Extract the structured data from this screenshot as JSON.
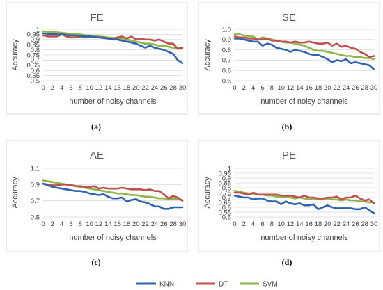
{
  "legend": [
    {
      "name": "KNN",
      "color": "#2E64AF"
    },
    {
      "name": "DT",
      "color": "#C0504D"
    },
    {
      "name": "SVM",
      "color": "#8DB54A"
    }
  ],
  "chart_data": [
    {
      "type": "line",
      "label": "(a)",
      "title": "FE",
      "xlabel": "number of noisy channels",
      "ylabel": "Accuracy",
      "x": [
        0,
        1,
        2,
        3,
        4,
        5,
        6,
        7,
        8,
        9,
        10,
        11,
        12,
        13,
        14,
        15,
        16,
        17,
        18,
        19,
        20,
        21,
        22,
        23,
        24,
        25,
        26,
        27,
        28,
        29,
        30
      ],
      "x_ticks": [
        0,
        2,
        4,
        6,
        8,
        10,
        12,
        14,
        16,
        18,
        20,
        22,
        24,
        26,
        28,
        30
      ],
      "y_ticks": [
        "0.5",
        "0.55",
        "0.6",
        "0.65",
        "0.7",
        "0.75",
        "0.8",
        "0.85",
        "0.9",
        "0.95",
        "1"
      ],
      "ylim": [
        0.5,
        1.0
      ],
      "grid": true,
      "series": [
        {
          "name": "KNN",
          "color": "#2E64AF",
          "values": [
            0.96,
            0.955,
            0.955,
            0.95,
            0.95,
            0.945,
            0.94,
            0.94,
            0.935,
            0.93,
            0.93,
            0.925,
            0.92,
            0.915,
            0.91,
            0.9,
            0.9,
            0.89,
            0.88,
            0.87,
            0.86,
            0.84,
            0.82,
            0.84,
            0.82,
            0.81,
            0.8,
            0.78,
            0.76,
            0.7,
            0.67
          ]
        },
        {
          "name": "DT",
          "color": "#C0504D",
          "values": [
            0.94,
            0.93,
            0.93,
            0.93,
            0.95,
            0.93,
            0.92,
            0.92,
            0.93,
            0.92,
            0.93,
            0.92,
            0.92,
            0.92,
            0.91,
            0.91,
            0.92,
            0.93,
            0.91,
            0.93,
            0.9,
            0.91,
            0.9,
            0.9,
            0.89,
            0.9,
            0.88,
            0.86,
            0.86,
            0.81,
            0.82
          ]
        },
        {
          "name": "SVM",
          "color": "#8DB54A",
          "values": [
            0.98,
            0.975,
            0.975,
            0.97,
            0.965,
            0.96,
            0.955,
            0.955,
            0.95,
            0.94,
            0.94,
            0.935,
            0.93,
            0.925,
            0.92,
            0.915,
            0.91,
            0.91,
            0.9,
            0.89,
            0.88,
            0.87,
            0.86,
            0.86,
            0.85,
            0.84,
            0.84,
            0.83,
            0.82,
            0.82,
            0.81
          ]
        }
      ]
    },
    {
      "type": "line",
      "label": "(b)",
      "title": "SE",
      "xlabel": "number of noisy channels",
      "ylabel": "Accuracy",
      "x": [
        0,
        1,
        2,
        3,
        4,
        5,
        6,
        7,
        8,
        9,
        10,
        11,
        12,
        13,
        14,
        15,
        16,
        17,
        18,
        19,
        20,
        21,
        22,
        23,
        24,
        25,
        26,
        27,
        28,
        29,
        30
      ],
      "x_ticks": [
        0,
        2,
        4,
        6,
        8,
        10,
        12,
        14,
        16,
        18,
        20,
        22,
        24,
        26,
        28,
        30
      ],
      "y_ticks": [
        "0.5",
        "0.6",
        "0.7",
        "0.8",
        "0.9",
        "1.0"
      ],
      "ylim": [
        0.5,
        1.0
      ],
      "grid": true,
      "series": [
        {
          "name": "KNN",
          "color": "#2E64AF",
          "values": [
            0.91,
            0.91,
            0.9,
            0.89,
            0.88,
            0.88,
            0.84,
            0.86,
            0.85,
            0.82,
            0.81,
            0.8,
            0.78,
            0.8,
            0.79,
            0.78,
            0.76,
            0.75,
            0.75,
            0.73,
            0.71,
            0.68,
            0.7,
            0.69,
            0.71,
            0.67,
            0.68,
            0.67,
            0.66,
            0.65,
            0.61
          ]
        },
        {
          "name": "DT",
          "color": "#C0504D",
          "values": [
            0.93,
            0.92,
            0.92,
            0.91,
            0.91,
            0.9,
            0.9,
            0.91,
            0.89,
            0.89,
            0.88,
            0.88,
            0.87,
            0.88,
            0.87,
            0.87,
            0.88,
            0.87,
            0.86,
            0.86,
            0.87,
            0.84,
            0.86,
            0.83,
            0.84,
            0.82,
            0.81,
            0.78,
            0.76,
            0.73,
            0.74
          ]
        },
        {
          "name": "SVM",
          "color": "#8DB54A",
          "values": [
            0.95,
            0.95,
            0.94,
            0.93,
            0.93,
            0.9,
            0.92,
            0.91,
            0.9,
            0.89,
            0.88,
            0.87,
            0.87,
            0.86,
            0.85,
            0.84,
            0.82,
            0.8,
            0.79,
            0.79,
            0.78,
            0.77,
            0.76,
            0.75,
            0.74,
            0.74,
            0.73,
            0.73,
            0.72,
            0.72,
            0.71
          ]
        }
      ]
    },
    {
      "type": "line",
      "label": "(c)",
      "title": "AE",
      "xlabel": "number of noisy channels",
      "ylabel": "Accuracy",
      "x": [
        0,
        1,
        2,
        3,
        4,
        5,
        6,
        7,
        8,
        9,
        10,
        11,
        12,
        13,
        14,
        15,
        16,
        17,
        18,
        19,
        20,
        21,
        22,
        23,
        24,
        25,
        26,
        27,
        28,
        29,
        30
      ],
      "x_ticks": [
        0,
        2,
        4,
        6,
        8,
        10,
        12,
        14,
        16,
        18,
        20,
        22,
        24,
        26,
        28,
        30
      ],
      "y_ticks": [
        "0.5",
        "0.7",
        "0.9",
        "1.1"
      ],
      "ylim": [
        0.5,
        1.1
      ],
      "grid": true,
      "series": [
        {
          "name": "KNN",
          "color": "#2E64AF",
          "values": [
            0.91,
            0.89,
            0.87,
            0.86,
            0.85,
            0.84,
            0.83,
            0.82,
            0.82,
            0.81,
            0.79,
            0.78,
            0.77,
            0.78,
            0.75,
            0.73,
            0.73,
            0.74,
            0.69,
            0.71,
            0.72,
            0.69,
            0.68,
            0.66,
            0.63,
            0.63,
            0.6,
            0.6,
            0.62,
            0.62,
            0.62
          ]
        },
        {
          "name": "DT",
          "color": "#C0504D",
          "values": [
            0.91,
            0.9,
            0.89,
            0.89,
            0.9,
            0.9,
            0.89,
            0.88,
            0.88,
            0.87,
            0.87,
            0.88,
            0.85,
            0.86,
            0.85,
            0.85,
            0.85,
            0.86,
            0.85,
            0.84,
            0.84,
            0.84,
            0.83,
            0.84,
            0.82,
            0.82,
            0.78,
            0.73,
            0.76,
            0.74,
            0.7
          ]
        },
        {
          "name": "SVM",
          "color": "#8DB54A",
          "values": [
            0.95,
            0.94,
            0.93,
            0.92,
            0.91,
            0.9,
            0.9,
            0.88,
            0.87,
            0.86,
            0.85,
            0.84,
            0.83,
            0.82,
            0.81,
            0.8,
            0.79,
            0.79,
            0.78,
            0.77,
            0.77,
            0.76,
            0.75,
            0.75,
            0.74,
            0.73,
            0.73,
            0.72,
            0.72,
            0.72,
            0.71
          ]
        }
      ]
    },
    {
      "type": "line",
      "label": "(d)",
      "title": "PE",
      "xlabel": "number of noisy channels",
      "ylabel": "Accuracy",
      "x": [
        0,
        1,
        2,
        3,
        4,
        5,
        6,
        7,
        8,
        9,
        10,
        11,
        12,
        13,
        14,
        15,
        16,
        17,
        18,
        19,
        20,
        21,
        22,
        23,
        24,
        25,
        26,
        27,
        28,
        29,
        30
      ],
      "x_ticks": [
        0,
        2,
        4,
        6,
        8,
        10,
        12,
        14,
        16,
        18,
        20,
        22,
        24,
        26,
        28,
        30
      ],
      "y_ticks": [
        "0.5",
        "0.55",
        "0.6",
        "0.65",
        "0.7",
        "0.75",
        "0.8",
        "0.85",
        "0.9",
        "0.95",
        "1"
      ],
      "ylim": [
        0.5,
        1.0
      ],
      "grid": true,
      "series": [
        {
          "name": "KNN",
          "color": "#2E64AF",
          "values": [
            0.72,
            0.71,
            0.7,
            0.7,
            0.68,
            0.69,
            0.69,
            0.67,
            0.66,
            0.66,
            0.63,
            0.66,
            0.64,
            0.63,
            0.64,
            0.62,
            0.62,
            0.63,
            0.58,
            0.6,
            0.62,
            0.6,
            0.59,
            0.59,
            0.59,
            0.59,
            0.58,
            0.58,
            0.6,
            0.57,
            0.54
          ]
        },
        {
          "name": "DT",
          "color": "#C0504D",
          "values": [
            0.75,
            0.75,
            0.74,
            0.73,
            0.75,
            0.73,
            0.73,
            0.73,
            0.73,
            0.73,
            0.72,
            0.72,
            0.72,
            0.71,
            0.7,
            0.72,
            0.7,
            0.7,
            0.69,
            0.69,
            0.7,
            0.7,
            0.71,
            0.68,
            0.7,
            0.7,
            0.72,
            0.69,
            0.67,
            0.68,
            0.64
          ]
        },
        {
          "name": "SVM",
          "color": "#8DB54A",
          "values": [
            0.77,
            0.76,
            0.75,
            0.74,
            0.74,
            0.73,
            0.73,
            0.72,
            0.72,
            0.71,
            0.7,
            0.71,
            0.7,
            0.69,
            0.7,
            0.69,
            0.68,
            0.69,
            0.68,
            0.68,
            0.69,
            0.68,
            0.68,
            0.67,
            0.68,
            0.67,
            0.67,
            0.66,
            0.66,
            0.65,
            0.65
          ]
        }
      ]
    }
  ]
}
